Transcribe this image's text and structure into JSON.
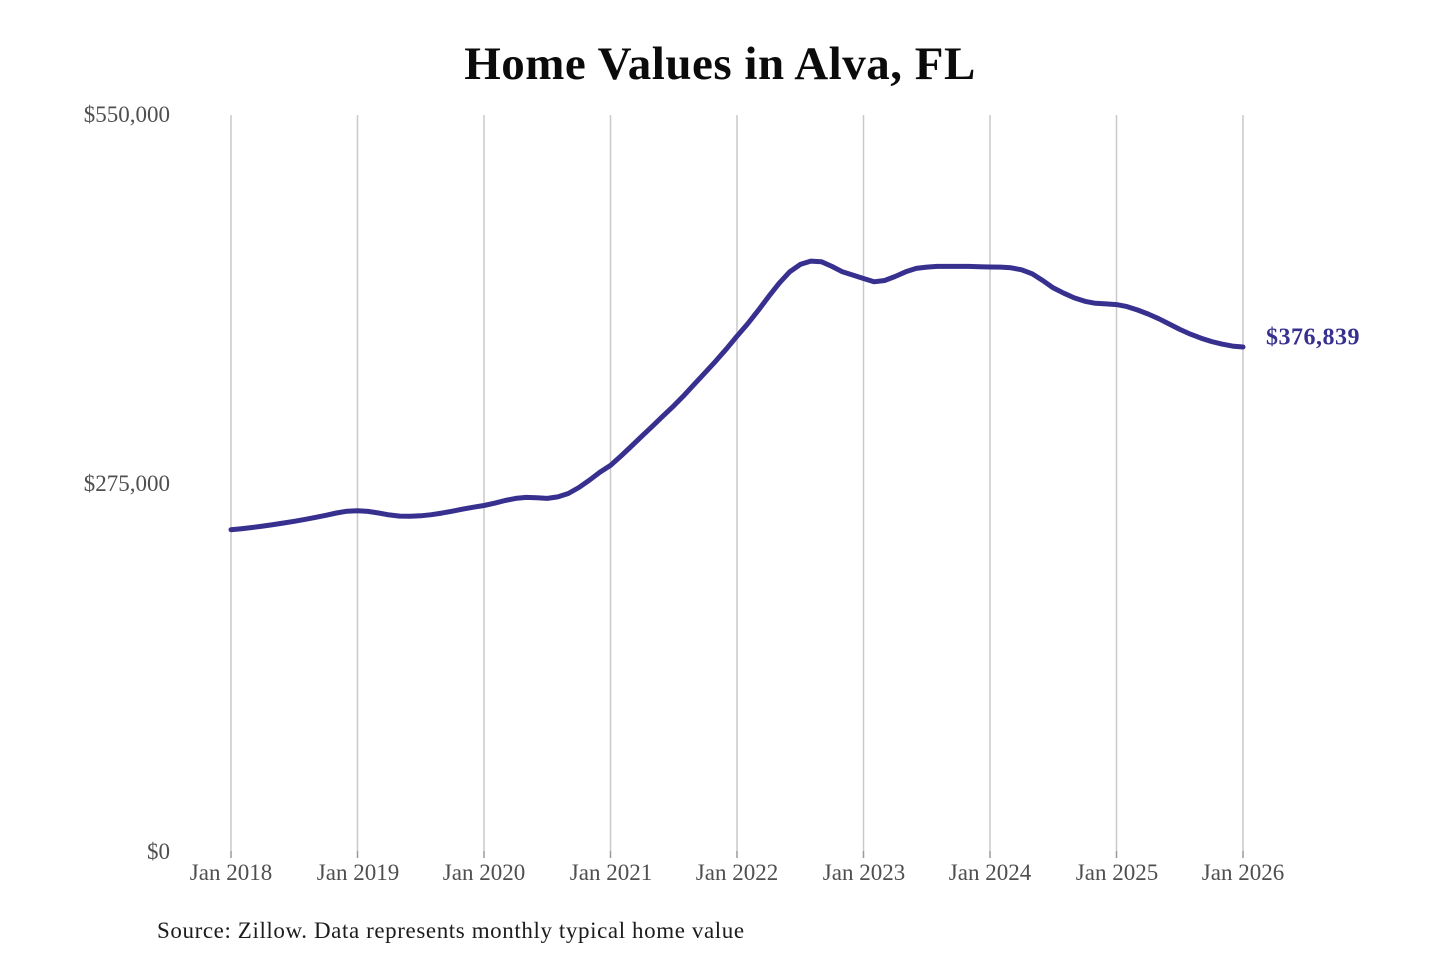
{
  "chart": {
    "title": "Home Values in Alva, FL",
    "end_value_label": "$376,839",
    "source_note": "Source: Zillow. Data represents monthly typical home value",
    "colors": {
      "line": "#38308f",
      "end_label": "#38308f",
      "gridline": "#c9c9c9",
      "tick_mark": "#9a9a9a",
      "tick_text": "#4f4f4f",
      "title_text": "#0b0b0b",
      "source_text": "#1c1c1c",
      "background": "#ffffff"
    }
  },
  "chart_data": {
    "type": "line",
    "title": "Home Values in Alva, FL",
    "xlabel": "",
    "ylabel": "",
    "ylim": [
      0,
      550000
    ],
    "y_tick_values": [
      0,
      275000,
      550000
    ],
    "y_tick_labels": [
      "$0",
      "$275,000",
      "$550,000"
    ],
    "x_tick_labels": [
      "Jan 2018",
      "Jan 2019",
      "Jan 2020",
      "Jan 2021",
      "Jan 2022",
      "Jan 2023",
      "Jan 2024",
      "Jan 2025",
      "Jan 2026"
    ],
    "x_start": "2018-01",
    "x_end": "2026-01",
    "frequency": "monthly",
    "grid": "vertical-only",
    "legend": "none",
    "annotation": {
      "text": "$376,839",
      "position": "end-of-line"
    },
    "series": [
      {
        "name": "Typical home value",
        "values": [
          240500,
          241300,
          242200,
          243200,
          244300,
          245500,
          246800,
          248200,
          249700,
          251300,
          253000,
          254300,
          254600,
          254200,
          253000,
          251600,
          250700,
          250500,
          250900,
          251700,
          252900,
          254300,
          255900,
          257300,
          258600,
          260300,
          262300,
          263900,
          264600,
          264300,
          263900,
          265000,
          267500,
          272000,
          277500,
          283500,
          288500,
          295500,
          303000,
          310500,
          318000,
          325500,
          333000,
          341000,
          349500,
          358000,
          366500,
          375500,
          385000,
          394000,
          404000,
          414500,
          424500,
          433000,
          438500,
          441000,
          440500,
          437000,
          433000,
          430500,
          428000,
          425500,
          426500,
          429500,
          433000,
          435500,
          436500,
          437000,
          437000,
          437000,
          437000,
          436800,
          436600,
          436500,
          436000,
          434500,
          431500,
          426500,
          421000,
          417000,
          413500,
          411000,
          409500,
          409000,
          408500,
          407000,
          404500,
          401500,
          398000,
          394000,
          390000,
          386500,
          383500,
          381000,
          379000,
          377500,
          376839
        ]
      }
    ]
  }
}
